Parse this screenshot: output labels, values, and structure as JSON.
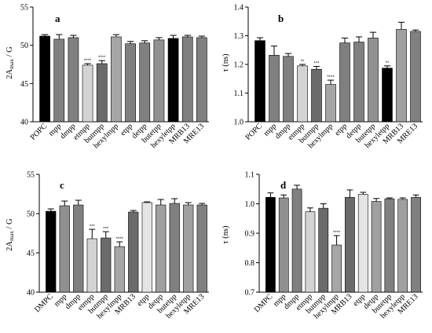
{
  "chart_data": [
    {
      "id": "a",
      "type": "bar",
      "panel_label": "a",
      "ylabel": "2A_max / G",
      "ylim": [
        40,
        55
      ],
      "yticks": [
        "40",
        "45",
        "50",
        "55"
      ],
      "categories": [
        "POPC",
        "mpp",
        "dmpp",
        "etmpp",
        "butmpp",
        "hexylmpp",
        "etpp",
        "detpp",
        "butetpp",
        "hexyletpp",
        "MRB13",
        "MRE13"
      ],
      "values": [
        51.2,
        50.8,
        51.0,
        47.4,
        47.6,
        51.1,
        50.2,
        50.3,
        50.7,
        50.9,
        51.1,
        51.0
      ],
      "errors": [
        0.2,
        0.6,
        0.3,
        0.2,
        0.4,
        0.3,
        0.3,
        0.3,
        0.3,
        0.4,
        0.2,
        0.2
      ],
      "significance": [
        "",
        "",
        "",
        "****",
        "****",
        "",
        "",
        "",
        "",
        "",
        "",
        ""
      ],
      "colors": [
        "#000000",
        "#808080",
        "#808080",
        "#d3d3d3",
        "#6b6b6b",
        "#a6a6a6",
        "#7f7f7f",
        "#808080",
        "#909090",
        "#000000",
        "#808080",
        "#808080"
      ]
    },
    {
      "id": "b",
      "type": "bar",
      "panel_label": "b",
      "ylabel": "τ (ns)",
      "ylim": [
        1.0,
        1.4
      ],
      "yticks": [
        "1.0",
        "1.1",
        "1.2",
        "1.3",
        "1.4"
      ],
      "categories": [
        "POPC",
        "mpp",
        "dmpp",
        "etmpp",
        "butmpp",
        "hexylmpp",
        "etpp",
        "detpp",
        "butetpp",
        "hexyletpp",
        "MRB13",
        "MRE13"
      ],
      "values": [
        1.283,
        1.232,
        1.228,
        1.195,
        1.183,
        1.13,
        1.275,
        1.278,
        1.292,
        1.187,
        1.322,
        1.315
      ],
      "errors": [
        0.01,
        0.032,
        0.01,
        0.005,
        0.01,
        0.015,
        0.017,
        0.018,
        0.02,
        0.008,
        0.025,
        0.005
      ],
      "significance": [
        "",
        "",
        "",
        "**",
        "***",
        "****",
        "",
        "",
        "",
        "**",
        "",
        ""
      ],
      "colors": [
        "#000000",
        "#808080",
        "#808080",
        "#d3d3d3",
        "#6b6b6b",
        "#a6a6a6",
        "#7f7f7f",
        "#808080",
        "#909090",
        "#000000",
        "#a0a0a0",
        "#808080"
      ]
    },
    {
      "id": "c",
      "type": "bar",
      "panel_label": "c",
      "ylabel": "2A_max / G",
      "ylim": [
        40,
        55
      ],
      "yticks": [
        "40",
        "45",
        "50",
        "55"
      ],
      "categories": [
        "DMPC",
        "mpp",
        "dmpp",
        "etmpp",
        "butmpp",
        "hexylmpp",
        "MRB13",
        "etpp",
        "detpp",
        "butetpp",
        "hexyletpp",
        "MRE13"
      ],
      "values": [
        50.3,
        51.0,
        51.1,
        46.8,
        46.9,
        45.8,
        50.2,
        51.4,
        51.1,
        51.3,
        51.1,
        51.1
      ],
      "errors": [
        0.3,
        0.6,
        0.6,
        1.2,
        0.8,
        0.6,
        0.2,
        0.1,
        0.7,
        0.6,
        0.3,
        0.2
      ],
      "significance": [
        "",
        "",
        "",
        "***",
        "***",
        "****",
        "",
        "",
        "",
        "",
        "",
        ""
      ],
      "colors": [
        "#000000",
        "#909090",
        "#808080",
        "#d3d3d3",
        "#6b6b6b",
        "#a6a6a6",
        "#6b6b6b",
        "#e4e4e4",
        "#a0a0a0",
        "#808080",
        "#a0a0a0",
        "#808080"
      ]
    },
    {
      "id": "d",
      "type": "bar",
      "panel_label": "d",
      "ylabel": "τ (ns)",
      "ylim": [
        0.7,
        1.1
      ],
      "yticks": [
        "0.7",
        "0.8",
        "0.9",
        "1.0",
        "1.1"
      ],
      "categories": [
        "DMPC",
        "mpp",
        "dmpp",
        "etmpp",
        "butmpp",
        "hexylmpp",
        "MRB13",
        "etpp",
        "detpp",
        "butetpp",
        "hexyletpp",
        "MRE13"
      ],
      "values": [
        1.022,
        1.02,
        1.05,
        0.973,
        0.985,
        0.86,
        1.022,
        1.032,
        1.008,
        1.017,
        1.015,
        1.022
      ],
      "errors": [
        0.015,
        0.01,
        0.013,
        0.013,
        0.015,
        0.032,
        0.025,
        0.007,
        0.01,
        0.003,
        0.005,
        0.008
      ],
      "significance": [
        "",
        "",
        "",
        "",
        "",
        "****",
        "",
        "",
        "",
        "",
        "",
        ""
      ],
      "colors": [
        "#000000",
        "#909090",
        "#808080",
        "#d3d3d3",
        "#6b6b6b",
        "#a6a6a6",
        "#6b6b6b",
        "#e4e4e4",
        "#a0a0a0",
        "#808080",
        "#a0a0a0",
        "#808080"
      ]
    }
  ]
}
